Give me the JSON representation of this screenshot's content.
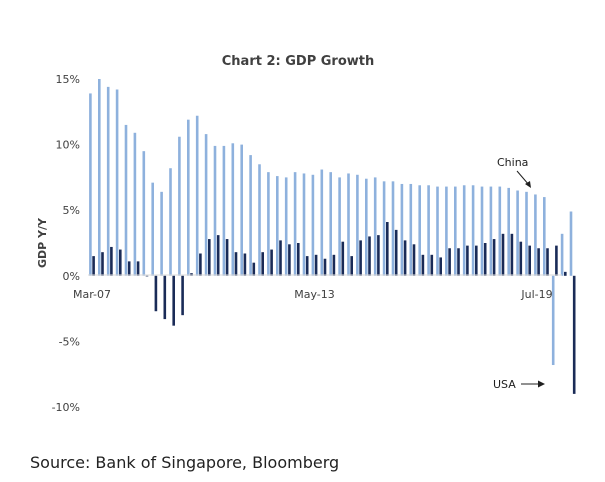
{
  "chart_data": {
    "type": "bar",
    "title": "Chart 2: GDP Growth",
    "ylabel": "GDP Y/Y",
    "xlabel": "",
    "ylim": [
      -10,
      15
    ],
    "yticks": [
      "15%",
      "10%",
      "5%",
      "0%",
      "-5%",
      "-10%"
    ],
    "ytick_values": [
      15,
      10,
      5,
      0,
      -5,
      -10
    ],
    "xtick_labels": [
      {
        "index": 0,
        "label": "Mar-07"
      },
      {
        "index": 25,
        "label": "May-13"
      },
      {
        "index": 50,
        "label": "Jul-19"
      }
    ],
    "grid": false,
    "legend": "none",
    "annotations": [
      {
        "text": "China",
        "series": "China"
      },
      {
        "text": "USA",
        "series": "USA"
      }
    ],
    "colors": {
      "China": "#8eb1dd",
      "USA": "#1a2b57"
    },
    "series": [
      {
        "name": "China",
        "values": [
          13.9,
          15.0,
          14.4,
          14.2,
          11.5,
          10.9,
          9.5,
          7.1,
          6.4,
          8.2,
          10.6,
          11.9,
          12.2,
          10.8,
          9.9,
          9.9,
          10.1,
          10.0,
          9.2,
          8.5,
          7.9,
          7.6,
          7.5,
          7.9,
          7.8,
          7.7,
          8.1,
          7.9,
          7.5,
          7.8,
          7.7,
          7.4,
          7.5,
          7.2,
          7.2,
          7.0,
          7.0,
          6.9,
          6.9,
          6.8,
          6.8,
          6.8,
          6.9,
          6.9,
          6.8,
          6.8,
          6.8,
          6.7,
          6.5,
          6.4,
          6.2,
          6.0,
          -6.8,
          3.2,
          4.9
        ]
      },
      {
        "name": "USA",
        "values": [
          1.5,
          1.8,
          2.2,
          2.0,
          1.1,
          1.1,
          0.0,
          -2.7,
          -3.3,
          -3.8,
          -3.0,
          0.2,
          1.7,
          2.8,
          3.1,
          2.8,
          1.8,
          1.7,
          1.0,
          1.8,
          2.0,
          2.7,
          2.4,
          2.5,
          1.5,
          1.6,
          1.3,
          1.6,
          2.6,
          1.5,
          2.7,
          3.0,
          3.1,
          4.1,
          3.5,
          2.7,
          2.4,
          1.6,
          1.6,
          1.4,
          2.1,
          2.1,
          2.3,
          2.3,
          2.5,
          2.8,
          3.2,
          3.2,
          2.6,
          2.3,
          2.1,
          2.1,
          2.3,
          0.3,
          -9.0
        ]
      }
    ]
  },
  "source": "Source: Bank of Singapore, Bloomberg"
}
